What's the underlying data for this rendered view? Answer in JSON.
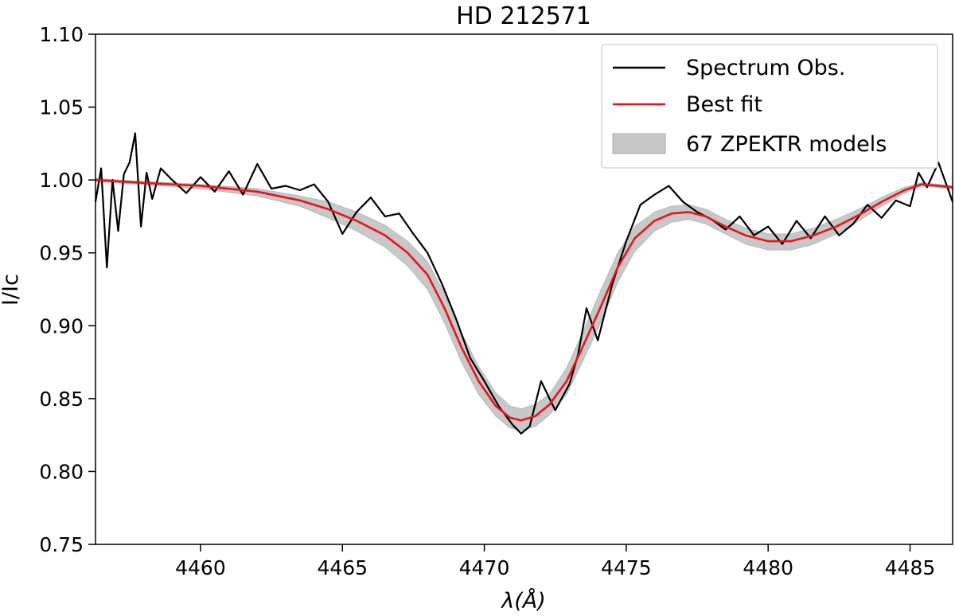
{
  "chart_data": {
    "type": "line",
    "title": "HD 212571",
    "xlabel": "λ(Å)",
    "ylabel": "I/Ic",
    "xlim": [
      4456.3,
      4486.5
    ],
    "ylim": [
      0.75,
      1.1
    ],
    "xticks": [
      4460,
      4465,
      4470,
      4475,
      4480,
      4485
    ],
    "yticks": [
      0.75,
      0.8,
      0.85,
      0.9,
      0.95,
      1.0,
      1.05,
      1.1
    ],
    "xtick_labels": [
      "4460",
      "4465",
      "4470",
      "4475",
      "4480",
      "4485"
    ],
    "ytick_labels": [
      "0.75",
      "0.80",
      "0.85",
      "0.90",
      "0.95",
      "1.00",
      "1.05",
      "1.10"
    ],
    "grid": false,
    "legend_position": "top-right",
    "series": [
      {
        "name": "Spectrum Obs.",
        "kind": "line",
        "color": "#000000",
        "x": [
          4456.3,
          4456.5,
          4456.7,
          4456.9,
          4457.1,
          4457.3,
          4457.5,
          4457.7,
          4457.9,
          4458.1,
          4458.3,
          4458.6,
          4459.0,
          4459.5,
          4460.0,
          4460.5,
          4461.0,
          4461.5,
          4462.0,
          4462.5,
          4463.0,
          4463.5,
          4464.0,
          4464.5,
          4465.0,
          4465.5,
          4466.0,
          4466.5,
          4467.0,
          4467.5,
          4468.0,
          4468.5,
          4469.0,
          4469.5,
          4470.0,
          4470.5,
          4471.0,
          4471.3,
          4471.6,
          4472.0,
          4472.5,
          4473.0,
          4473.3,
          4473.6,
          4474.0,
          4474.5,
          4475.0,
          4475.5,
          4476.0,
          4476.5,
          4477.0,
          4477.5,
          4478.0,
          4478.5,
          4479.0,
          4479.5,
          4480.0,
          4480.5,
          4481.0,
          4481.5,
          4482.0,
          4482.5,
          4483.0,
          4483.5,
          4484.0,
          4484.5,
          4485.0,
          4485.3,
          4485.6,
          4486.0,
          4486.5
        ],
        "y": [
          0.985,
          1.008,
          0.94,
          1.0,
          0.965,
          1.004,
          1.012,
          1.032,
          0.968,
          1.005,
          0.987,
          1.008,
          1.0,
          0.991,
          1.002,
          0.992,
          1.006,
          0.99,
          1.011,
          0.994,
          0.996,
          0.993,
          0.997,
          0.985,
          0.963,
          0.978,
          0.988,
          0.975,
          0.977,
          0.963,
          0.95,
          0.929,
          0.905,
          0.878,
          0.862,
          0.845,
          0.832,
          0.826,
          0.831,
          0.862,
          0.842,
          0.86,
          0.88,
          0.912,
          0.89,
          0.928,
          0.958,
          0.983,
          0.99,
          0.996,
          0.985,
          0.978,
          0.973,
          0.966,
          0.975,
          0.962,
          0.968,
          0.956,
          0.972,
          0.96,
          0.975,
          0.962,
          0.97,
          0.983,
          0.974,
          0.986,
          0.982,
          1.005,
          0.995,
          1.012,
          0.985
        ]
      },
      {
        "name": "Best fit",
        "kind": "line",
        "color": "#e8141a",
        "x": [
          4456.3,
          4458.0,
          4460.0,
          4462.0,
          4463.5,
          4464.5,
          4465.5,
          4466.5,
          4467.3,
          4468.0,
          4468.6,
          4469.2,
          4469.8,
          4470.4,
          4470.9,
          4471.3,
          4471.8,
          4472.3,
          4472.9,
          4473.5,
          4474.1,
          4474.7,
          4475.3,
          4476.0,
          4476.6,
          4477.2,
          4477.8,
          4478.5,
          4479.2,
          4480.0,
          4480.8,
          4481.6,
          4482.4,
          4483.2,
          4484.0,
          4484.8,
          4485.4,
          4486.0,
          4486.5
        ],
        "y": [
          1.0,
          0.998,
          0.996,
          0.992,
          0.986,
          0.98,
          0.972,
          0.962,
          0.95,
          0.935,
          0.912,
          0.885,
          0.862,
          0.845,
          0.837,
          0.835,
          0.838,
          0.846,
          0.862,
          0.887,
          0.913,
          0.94,
          0.96,
          0.972,
          0.977,
          0.978,
          0.975,
          0.968,
          0.962,
          0.958,
          0.958,
          0.962,
          0.968,
          0.976,
          0.985,
          0.993,
          0.997,
          0.996,
          0.995
        ]
      },
      {
        "name": "67 ZPEKTR models",
        "kind": "band",
        "color": "#c8c8c8",
        "x": [
          4456.3,
          4458.0,
          4460.0,
          4462.0,
          4463.5,
          4464.5,
          4465.5,
          4466.5,
          4467.3,
          4468.0,
          4468.6,
          4469.2,
          4469.8,
          4470.4,
          4470.9,
          4471.3,
          4471.8,
          4472.3,
          4472.9,
          4473.5,
          4474.1,
          4474.7,
          4475.3,
          4476.0,
          4476.6,
          4477.2,
          4477.8,
          4478.5,
          4479.2,
          4480.0,
          4480.8,
          4481.6,
          4482.4,
          4483.2,
          4484.0,
          4484.8,
          4485.4,
          4486.0,
          4486.5
        ],
        "y_lower": [
          0.999,
          0.997,
          0.994,
          0.989,
          0.982,
          0.974,
          0.965,
          0.954,
          0.941,
          0.925,
          0.902,
          0.875,
          0.853,
          0.838,
          0.83,
          0.828,
          0.831,
          0.839,
          0.853,
          0.877,
          0.902,
          0.93,
          0.951,
          0.965,
          0.971,
          0.973,
          0.97,
          0.963,
          0.956,
          0.952,
          0.952,
          0.956,
          0.963,
          0.972,
          0.982,
          0.991,
          0.996,
          0.995,
          0.994
        ],
        "y_upper": [
          1.001,
          0.999,
          0.997,
          0.994,
          0.989,
          0.985,
          0.978,
          0.969,
          0.958,
          0.944,
          0.922,
          0.895,
          0.872,
          0.854,
          0.845,
          0.843,
          0.846,
          0.853,
          0.871,
          0.897,
          0.924,
          0.95,
          0.968,
          0.978,
          0.982,
          0.983,
          0.98,
          0.973,
          0.967,
          0.963,
          0.963,
          0.967,
          0.973,
          0.98,
          0.988,
          0.995,
          0.998,
          0.997,
          0.996
        ]
      }
    ]
  }
}
